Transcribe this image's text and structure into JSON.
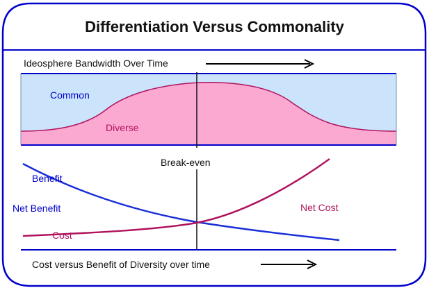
{
  "title": "Differentiation Versus Commonality",
  "top_caption": "Ideosphere Bandwidth Over Time",
  "bottom_caption": "Cost versus Benefit of Diversity over time",
  "labels": {
    "common": "Common",
    "diverse": "Diverse",
    "break_even": "Break-even",
    "benefit": "Benefit",
    "net_benefit": "Net Benefit",
    "cost": "Cost",
    "net_cost": "Net Cost"
  },
  "colors": {
    "frame": "#0000cc",
    "common_fill": "#cce4fb",
    "diverse_fill": "#fca9d2",
    "diverse_line": "#b0135e",
    "benefit_line": "#1a2fd8",
    "cost_line": "#b0135e",
    "text_blue": "#0000cc",
    "text_magenta": "#b0135e"
  }
}
